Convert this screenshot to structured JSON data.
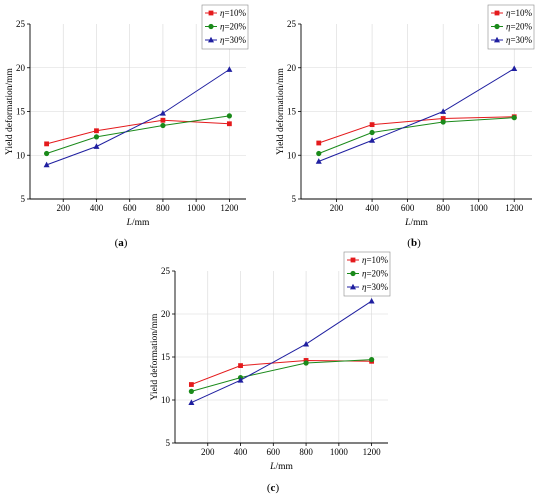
{
  "chart_data": [
    {
      "type": "line",
      "panel": "(a)",
      "xlabel": "L/mm",
      "ylabel": "Yield deformation/mm",
      "xlim": [
        0,
        1300
      ],
      "ylim": [
        5,
        25
      ],
      "xticks": [
        200,
        400,
        600,
        800,
        1000,
        1200
      ],
      "yticks": [
        5,
        10,
        15,
        20,
        25
      ],
      "grid": true,
      "legend_position": "top-right",
      "series": [
        {
          "name": "η=10%",
          "color": "#e41a1c",
          "marker": "square",
          "x": [
            100,
            400,
            800,
            1200
          ],
          "y": [
            11.3,
            12.8,
            14.0,
            13.6
          ]
        },
        {
          "name": "η=20%",
          "color": "#1a8a1a",
          "marker": "circle",
          "x": [
            100,
            400,
            800,
            1200
          ],
          "y": [
            10.2,
            12.1,
            13.4,
            14.5
          ]
        },
        {
          "name": "η=30%",
          "color": "#1f1fa0",
          "marker": "triangle",
          "x": [
            100,
            400,
            800,
            1200
          ],
          "y": [
            8.9,
            11.0,
            14.8,
            19.8
          ]
        }
      ]
    },
    {
      "type": "line",
      "panel": "(b)",
      "xlabel": "L/mm",
      "ylabel": "Yield deformation/mm",
      "xlim": [
        0,
        1300
      ],
      "ylim": [
        5,
        25
      ],
      "xticks": [
        200,
        400,
        600,
        800,
        1000,
        1200
      ],
      "yticks": [
        5,
        10,
        15,
        20,
        25
      ],
      "grid": true,
      "legend_position": "top-right",
      "series": [
        {
          "name": "η=10%",
          "color": "#e41a1c",
          "marker": "square",
          "x": [
            100,
            400,
            800,
            1200
          ],
          "y": [
            11.4,
            13.5,
            14.2,
            14.4
          ]
        },
        {
          "name": "η=20%",
          "color": "#1a8a1a",
          "marker": "circle",
          "x": [
            100,
            400,
            800,
            1200
          ],
          "y": [
            10.2,
            12.6,
            13.8,
            14.3
          ]
        },
        {
          "name": "η=30%",
          "color": "#1f1fa0",
          "marker": "triangle",
          "x": [
            100,
            400,
            800,
            1200
          ],
          "y": [
            9.3,
            11.7,
            15.0,
            19.9
          ]
        }
      ]
    },
    {
      "type": "line",
      "panel": "(c)",
      "xlabel": "L/mm",
      "ylabel": "Yield deformation/mm",
      "xlim": [
        0,
        1300
      ],
      "ylim": [
        5,
        25
      ],
      "xticks": [
        200,
        400,
        600,
        800,
        1000,
        1200
      ],
      "yticks": [
        5,
        10,
        15,
        20,
        25
      ],
      "grid": true,
      "legend_position": "top-right",
      "series": [
        {
          "name": "η=10%",
          "color": "#e41a1c",
          "marker": "square",
          "x": [
            100,
            400,
            800,
            1200
          ],
          "y": [
            11.8,
            14.0,
            14.6,
            14.5
          ]
        },
        {
          "name": "η=20%",
          "color": "#1a8a1a",
          "marker": "circle",
          "x": [
            100,
            400,
            800,
            1200
          ],
          "y": [
            11.0,
            12.6,
            14.3,
            14.7
          ]
        },
        {
          "name": "η=30%",
          "color": "#1f1fa0",
          "marker": "triangle",
          "x": [
            100,
            400,
            800,
            1200
          ],
          "y": [
            9.7,
            12.3,
            16.5,
            21.5
          ]
        }
      ]
    }
  ]
}
